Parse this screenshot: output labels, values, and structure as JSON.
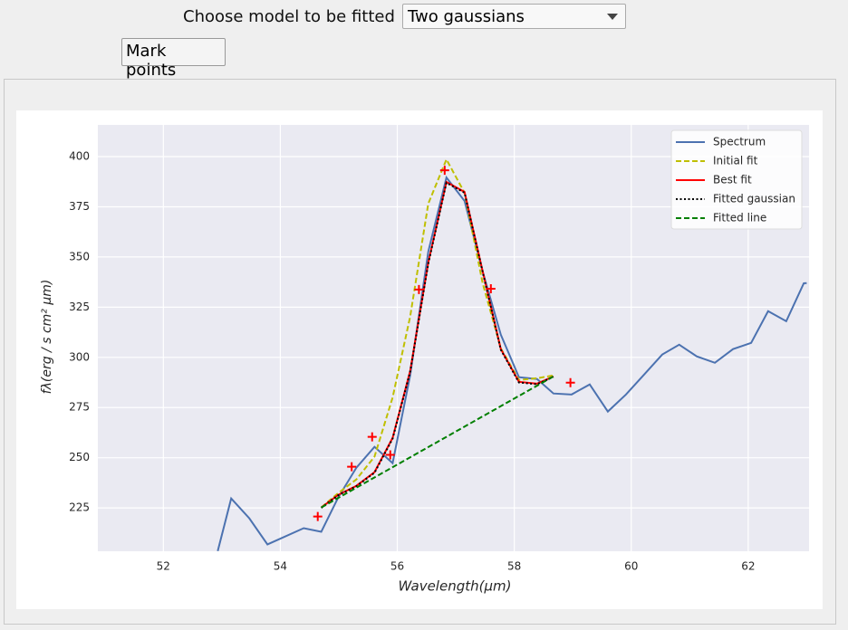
{
  "ui": {
    "model_label": "Choose model to be fitted",
    "model_choice": "Two gaussians",
    "mark_button": "Mark points"
  },
  "chart_data": {
    "type": "line",
    "x_label": "Wavelength(μm)",
    "y_label": "fλ(erg / s cm² μm)",
    "xlim": [
      50.88,
      63.04
    ],
    "ylim": [
      203.4,
      415.8
    ],
    "xticks": [
      52,
      54,
      56,
      58,
      60,
      62
    ],
    "yticks": [
      225,
      250,
      275,
      300,
      325,
      350,
      375,
      400
    ],
    "grid": true,
    "legend": "upper right",
    "series": [
      {
        "name": "Spectrum",
        "color": "#4c72b0",
        "style": "solid",
        "x": [
          52.93,
          53.16,
          53.47,
          53.78,
          54.4,
          54.7,
          54.99,
          55.3,
          55.61,
          55.92,
          56.22,
          56.53,
          56.84,
          57.15,
          57.46,
          57.77,
          58.08,
          58.39,
          58.67,
          58.98,
          59.29,
          59.6,
          59.91,
          60.22,
          60.53,
          60.82,
          61.12,
          61.43,
          61.74,
          62.05,
          62.34,
          62.65,
          62.95,
          63.0
        ],
        "values": [
          203.5,
          229.7,
          219.8,
          206.8,
          214.9,
          213.1,
          230.2,
          245.0,
          255.4,
          247.3,
          291.0,
          352.7,
          389.6,
          377.9,
          342.8,
          311.3,
          290.1,
          289.2,
          282.0,
          281.5,
          286.5,
          273.0,
          281.5,
          291.4,
          301.4,
          306.3,
          300.5,
          297.3,
          304.1,
          307.2,
          323.0,
          318.0,
          336.9,
          337.0
        ]
      },
      {
        "name": "Initial fit",
        "color": "#bfbf00",
        "style": "dashed",
        "x": [
          54.7,
          54.99,
          55.3,
          55.61,
          55.92,
          56.22,
          56.53,
          56.84,
          57.15,
          57.46,
          57.77,
          58.08,
          58.39,
          58.67
        ],
        "values": [
          225.2,
          232.4,
          239.2,
          250.5,
          280.0,
          320.3,
          376.6,
          398.6,
          382.0,
          336.9,
          304.5,
          288.7,
          289.6,
          291.0
        ]
      },
      {
        "name": "Best fit",
        "color": "#ff0000",
        "style": "solid",
        "x": [
          54.7,
          54.99,
          55.3,
          55.61,
          55.92,
          56.22,
          56.53,
          56.84,
          57.15,
          57.46,
          57.77,
          58.08,
          58.39,
          58.67
        ],
        "values": [
          225.2,
          231.5,
          236.0,
          242.8,
          259.9,
          293.2,
          347.3,
          387.4,
          382.4,
          342.8,
          304.1,
          287.8,
          286.9,
          290.5
        ]
      },
      {
        "name": "Fitted gaussian",
        "color": "#000000",
        "style": "dotted",
        "x": [
          54.7,
          54.99,
          55.3,
          55.61,
          55.92,
          56.22,
          56.53,
          56.84,
          57.15,
          57.46,
          57.77,
          58.08,
          58.39,
          58.67
        ],
        "values": [
          225.0,
          231.3,
          235.8,
          242.5,
          259.5,
          292.8,
          346.8,
          387.0,
          382.0,
          342.5,
          303.8,
          287.5,
          286.6,
          290.3
        ]
      },
      {
        "name": "Fitted line",
        "color": "#007f00",
        "style": "dashed",
        "x": [
          54.7,
          58.67
        ],
        "values": [
          225.2,
          290.5
        ]
      }
    ],
    "points": {
      "color": "#ff0000",
      "marker": "+",
      "x": [
        54.64,
        55.22,
        55.57,
        55.88,
        56.37,
        56.81,
        57.6,
        58.96
      ],
      "values": [
        220.7,
        245.5,
        260.4,
        251.4,
        333.8,
        393.2,
        334.2,
        287.4
      ]
    }
  }
}
